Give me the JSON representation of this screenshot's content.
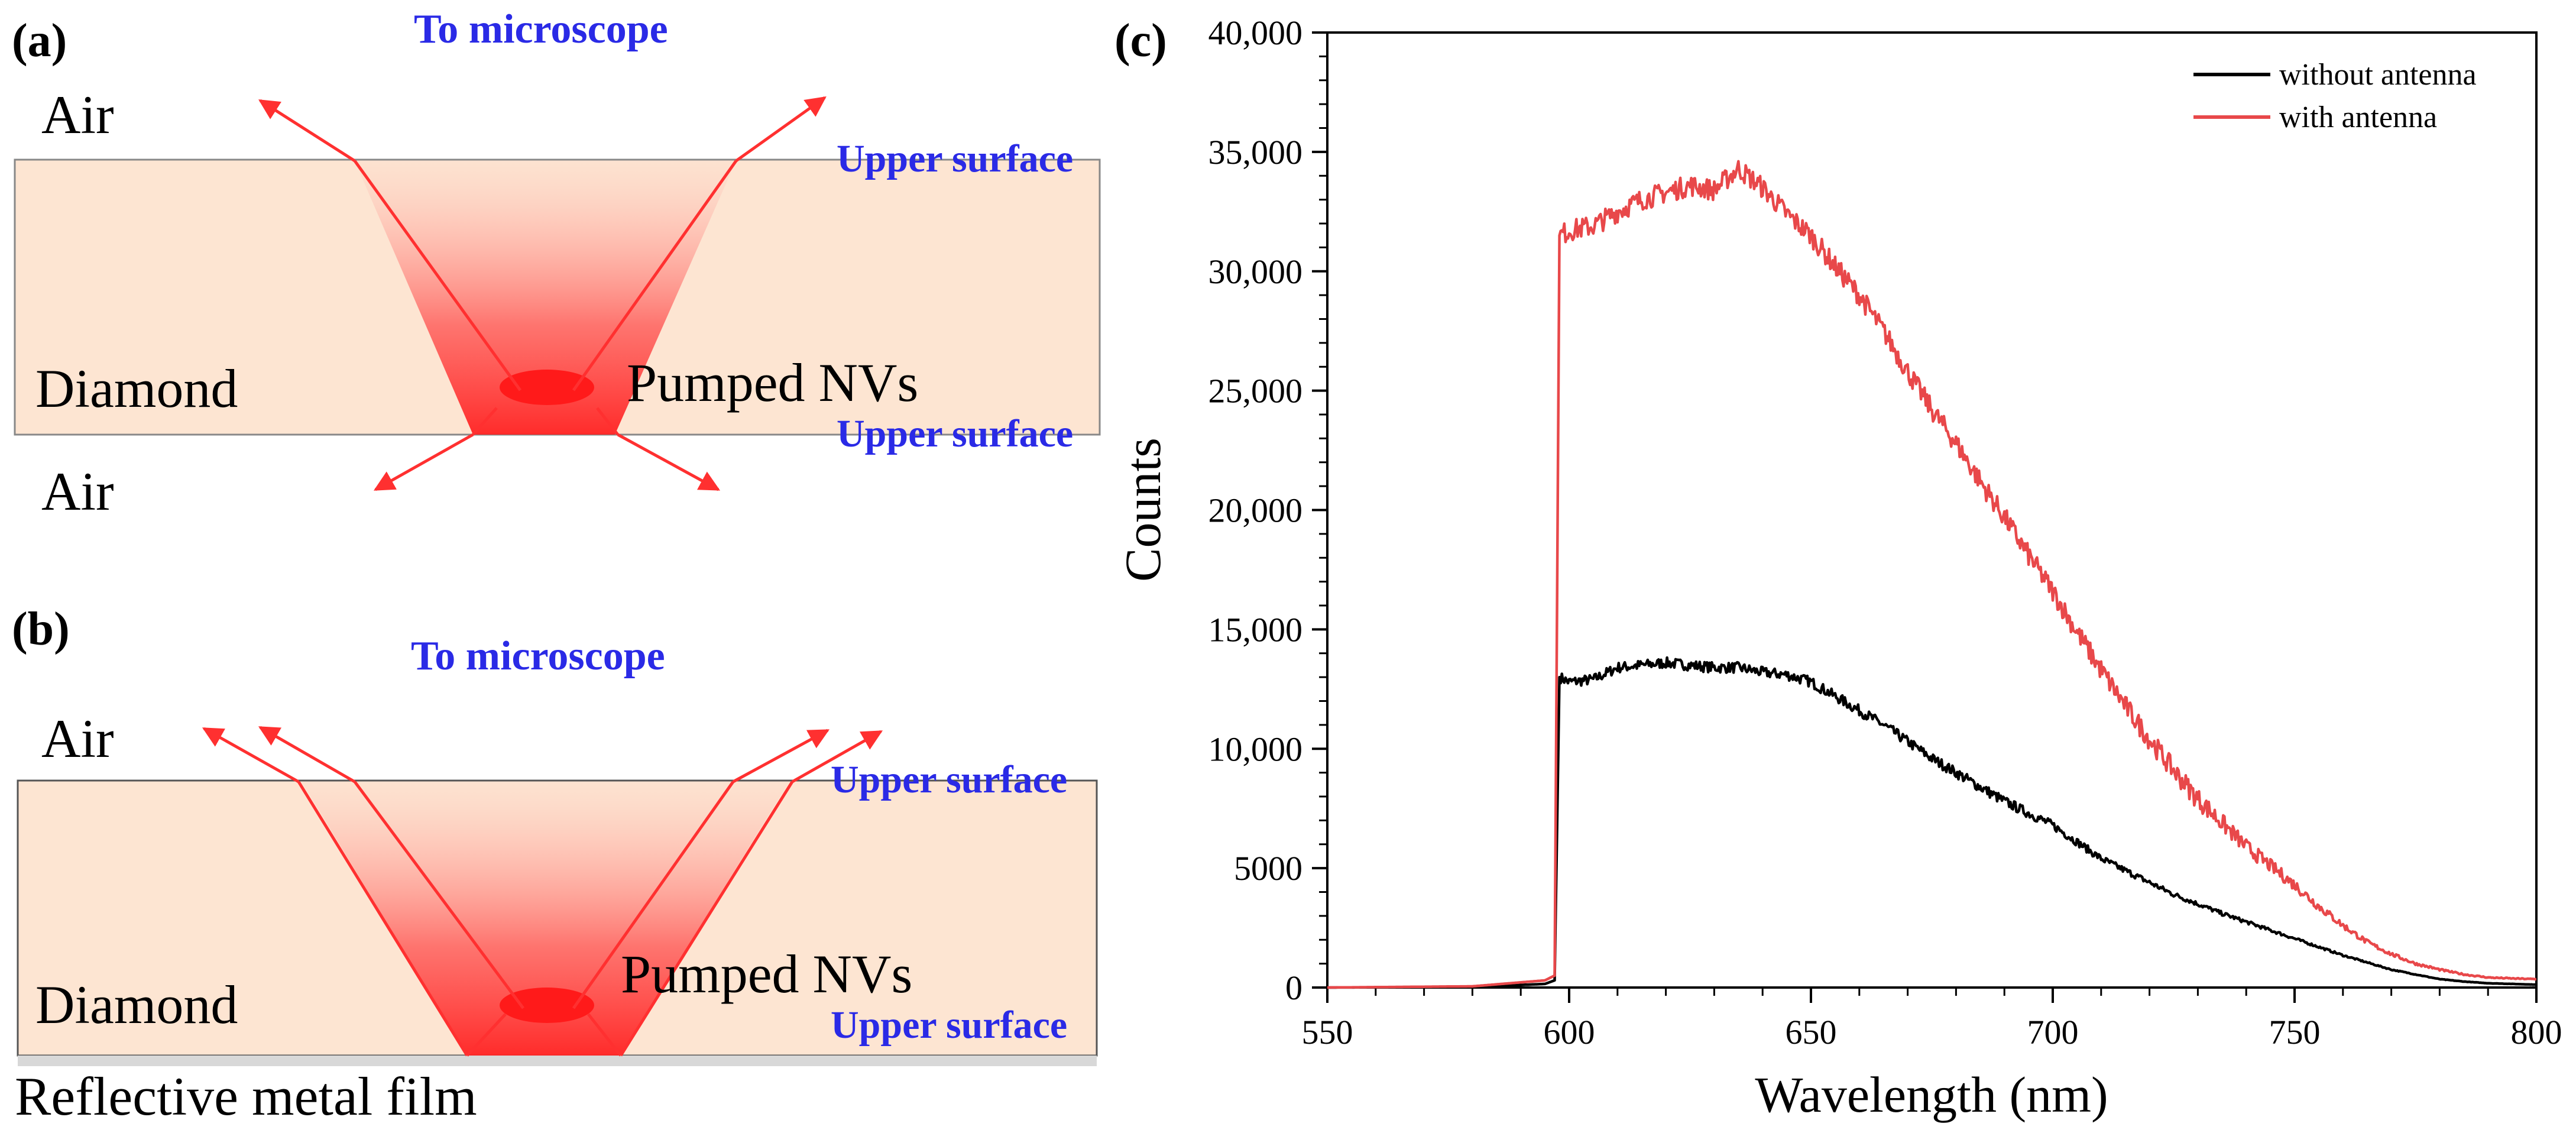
{
  "panel_a": {
    "label": "(a)",
    "to_microscope": "To microscope",
    "air_top": "Air",
    "air_bottom": "Air",
    "diamond": "Diamond",
    "pumped": "Pumped NVs",
    "upper_surface_1": "Upper surface",
    "upper_surface_2": "Upper surface"
  },
  "panel_b": {
    "label": "(b)",
    "to_microscope": "To microscope",
    "air_top": "Air",
    "diamond": "Diamond",
    "pumped": "Pumped NVs",
    "upper_surface_1": "Upper surface",
    "upper_surface_2": "Upper surface",
    "film": "Reflective metal film"
  },
  "colors": {
    "diamond_fill": "#fde5d2",
    "ray": "#ff3030",
    "blue_text": "#2a2ae6",
    "without": "#000000",
    "with": "#e8484a"
  },
  "chart_data": {
    "label": "(c)",
    "type": "line",
    "xlabel": "Wavelength (nm)",
    "ylabel": "Counts",
    "xlim": [
      550,
      800
    ],
    "ylim": [
      0,
      40000
    ],
    "x_ticks": [
      "550",
      "600",
      "650",
      "700",
      "750",
      "800"
    ],
    "y_ticks": [
      "0",
      "5000",
      "10,000",
      "15,000",
      "20,000",
      "25,000",
      "30,000",
      "35,000",
      "40,000"
    ],
    "legend_position": "top-right",
    "grid": false,
    "series": [
      {
        "name": "without antenna",
        "color": "#000000",
        "x": [
          550,
          580,
          595,
          597,
          598,
          600,
          605,
          610,
          615,
          620,
          625,
          630,
          635,
          640,
          645,
          650,
          655,
          660,
          665,
          670,
          675,
          680,
          685,
          690,
          695,
          700,
          705,
          710,
          715,
          720,
          725,
          730,
          735,
          740,
          745,
          750,
          755,
          760,
          765,
          770,
          775,
          780,
          785,
          790,
          795,
          800
        ],
        "y": [
          0,
          20,
          150,
          300,
          13000,
          12800,
          12900,
          13400,
          13500,
          13600,
          13500,
          13400,
          13400,
          13200,
          13100,
          12800,
          12200,
          11600,
          11000,
          10300,
          9600,
          9000,
          8400,
          7800,
          7300,
          6800,
          6100,
          5400,
          4900,
          4400,
          3900,
          3500,
          3100,
          2750,
          2400,
          2050,
          1700,
          1350,
          1050,
          750,
          550,
          350,
          250,
          180,
          150,
          120
        ]
      },
      {
        "name": "with antenna",
        "color": "#e8484a",
        "x": [
          550,
          580,
          595,
          597,
          598,
          600,
          605,
          610,
          615,
          620,
          625,
          630,
          635,
          640,
          645,
          650,
          655,
          660,
          665,
          670,
          675,
          680,
          685,
          690,
          695,
          700,
          705,
          710,
          715,
          720,
          725,
          730,
          735,
          740,
          745,
          750,
          755,
          760,
          765,
          770,
          775,
          780,
          785,
          790,
          795,
          800
        ],
        "y": [
          0,
          50,
          300,
          500,
          31500,
          31700,
          31900,
          32500,
          33000,
          33300,
          33600,
          33400,
          34300,
          33500,
          32400,
          31500,
          30200,
          29000,
          27500,
          25800,
          24200,
          22800,
          21200,
          19700,
          18100,
          16600,
          14900,
          13300,
          11800,
          10400,
          9100,
          7900,
          6900,
          5900,
          5100,
          4300,
          3400,
          2600,
          1900,
          1400,
          1000,
          750,
          550,
          420,
          380,
          350
        ]
      }
    ]
  }
}
